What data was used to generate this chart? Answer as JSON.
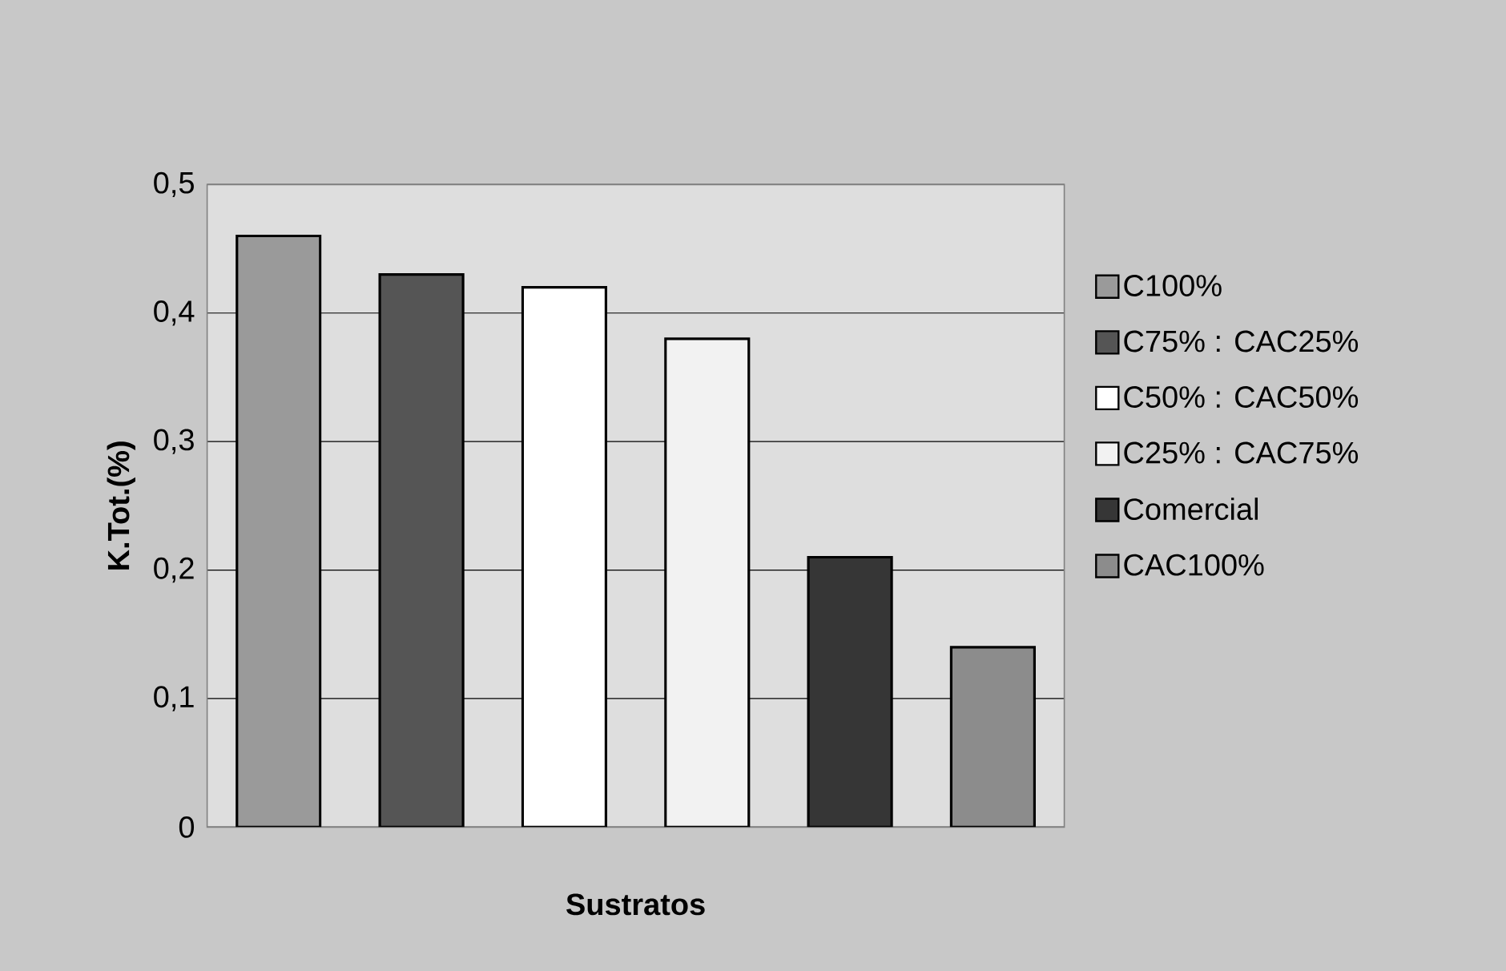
{
  "chart_data": {
    "type": "bar",
    "xlabel": "Sustratos",
    "ylabel": "K.Tot.(%)",
    "categories": [
      null,
      null,
      null,
      null,
      null,
      null
    ],
    "series": [
      {
        "name": "C100%",
        "color": "#9a9a9a",
        "values": [
          0.46,
          null,
          null,
          null,
          null,
          null
        ]
      },
      {
        "name": "C75% : CAC25%",
        "color": "#555555",
        "values": [
          null,
          0.43,
          null,
          null,
          null,
          null
        ]
      },
      {
        "name": "C50% : CAC50%",
        "color": "#ffffff",
        "values": [
          null,
          null,
          0.42,
          null,
          null,
          null
        ]
      },
      {
        "name": "C25% : CAC75%",
        "color": "#f2f2f2",
        "values": [
          null,
          null,
          null,
          0.38,
          null,
          null
        ]
      },
      {
        "name": "Comercial",
        "color": "#363636",
        "values": [
          null,
          null,
          null,
          null,
          0.21,
          null
        ]
      },
      {
        "name": "CAC100%",
        "color": "#8c8c8c",
        "values": [
          null,
          null,
          null,
          null,
          null,
          0.14
        ]
      }
    ],
    "ylim": [
      0,
      0.5
    ],
    "yticks": [
      0,
      {
        "value": 0.1,
        "label": "0,1"
      },
      {
        "value": 0.2,
        "label": "0,2"
      },
      {
        "value": 0.3,
        "label": "0,3"
      },
      {
        "value": 0.4,
        "label": "0,4"
      },
      {
        "value": 0.5,
        "label": "0,5"
      }
    ],
    "grid": "y",
    "legend": "right",
    "tick_labels": "y"
  }
}
